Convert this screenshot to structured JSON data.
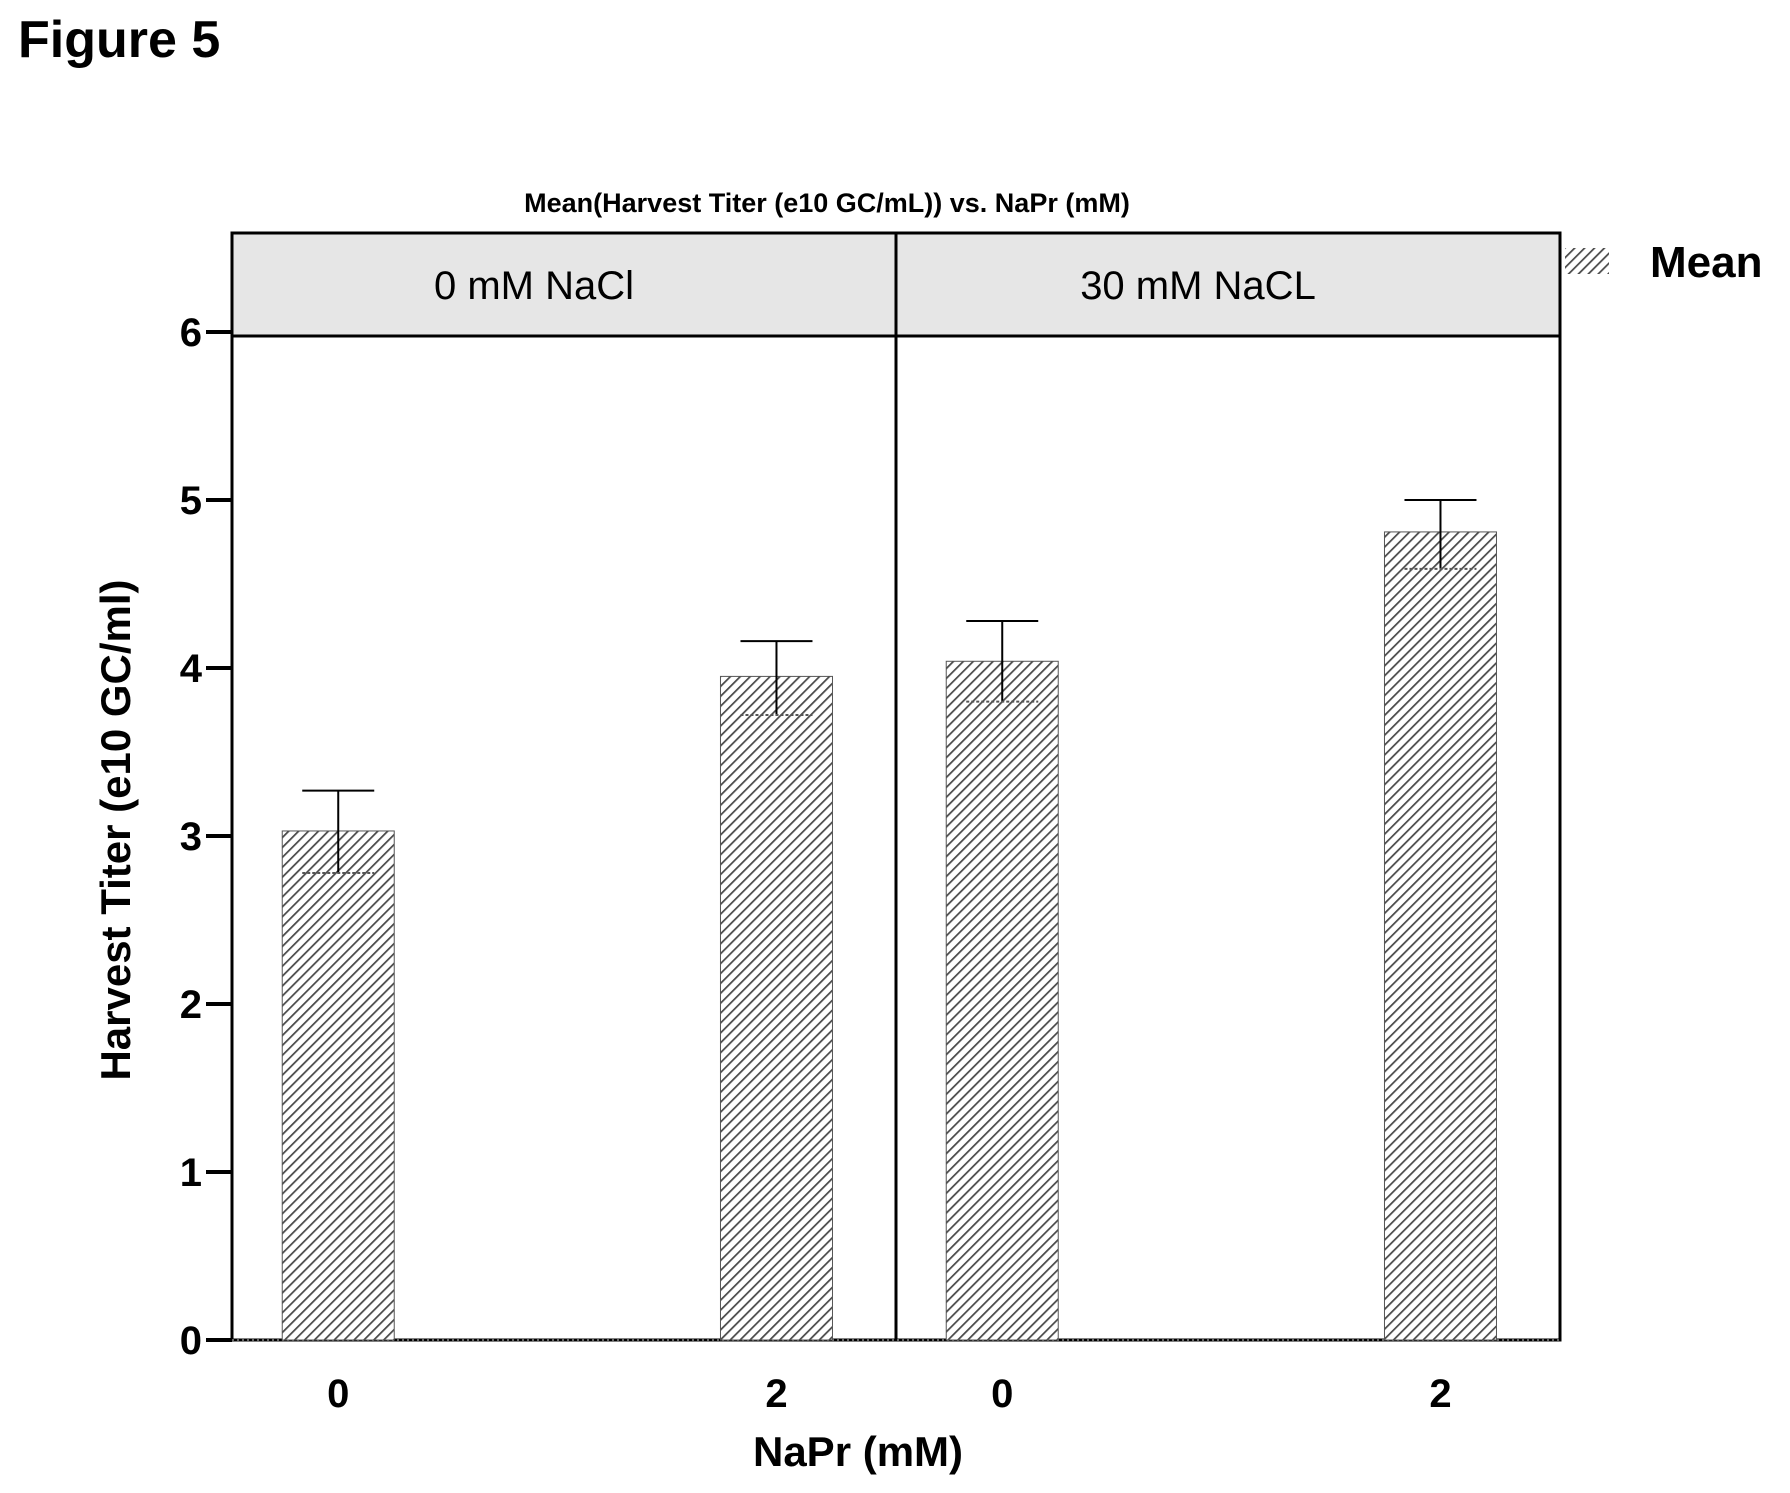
{
  "figure_label": "Figure 5",
  "chart_data": {
    "type": "bar",
    "title": "Mean(Harvest Titer (e10 GC/mL)) vs. NaPr (mM)",
    "xlabel": "NaPr (mM)",
    "ylabel": "Harvest Titer (e10 GC/ml)",
    "ylim": [
      0,
      6.5
    ],
    "yticks": [
      "0",
      "1",
      "2",
      "3",
      "4",
      "5",
      "6"
    ],
    "legend": {
      "label": "Mean",
      "position": "top-right"
    },
    "panels": [
      {
        "label": "0 mM NaCl",
        "categories": [
          "0",
          "2"
        ],
        "values": [
          3.03,
          3.95
        ],
        "error_low": [
          2.78,
          3.72
        ],
        "error_high": [
          3.27,
          4.16
        ]
      },
      {
        "label": "30 mM NaCL",
        "categories": [
          "0",
          "2"
        ],
        "values": [
          4.04,
          4.81
        ],
        "error_low": [
          3.8,
          4.59
        ],
        "error_high": [
          4.28,
          5.0
        ]
      }
    ],
    "colors": {
      "bar_stroke": "#555555",
      "panel_header": "#e6e6e6"
    }
  }
}
